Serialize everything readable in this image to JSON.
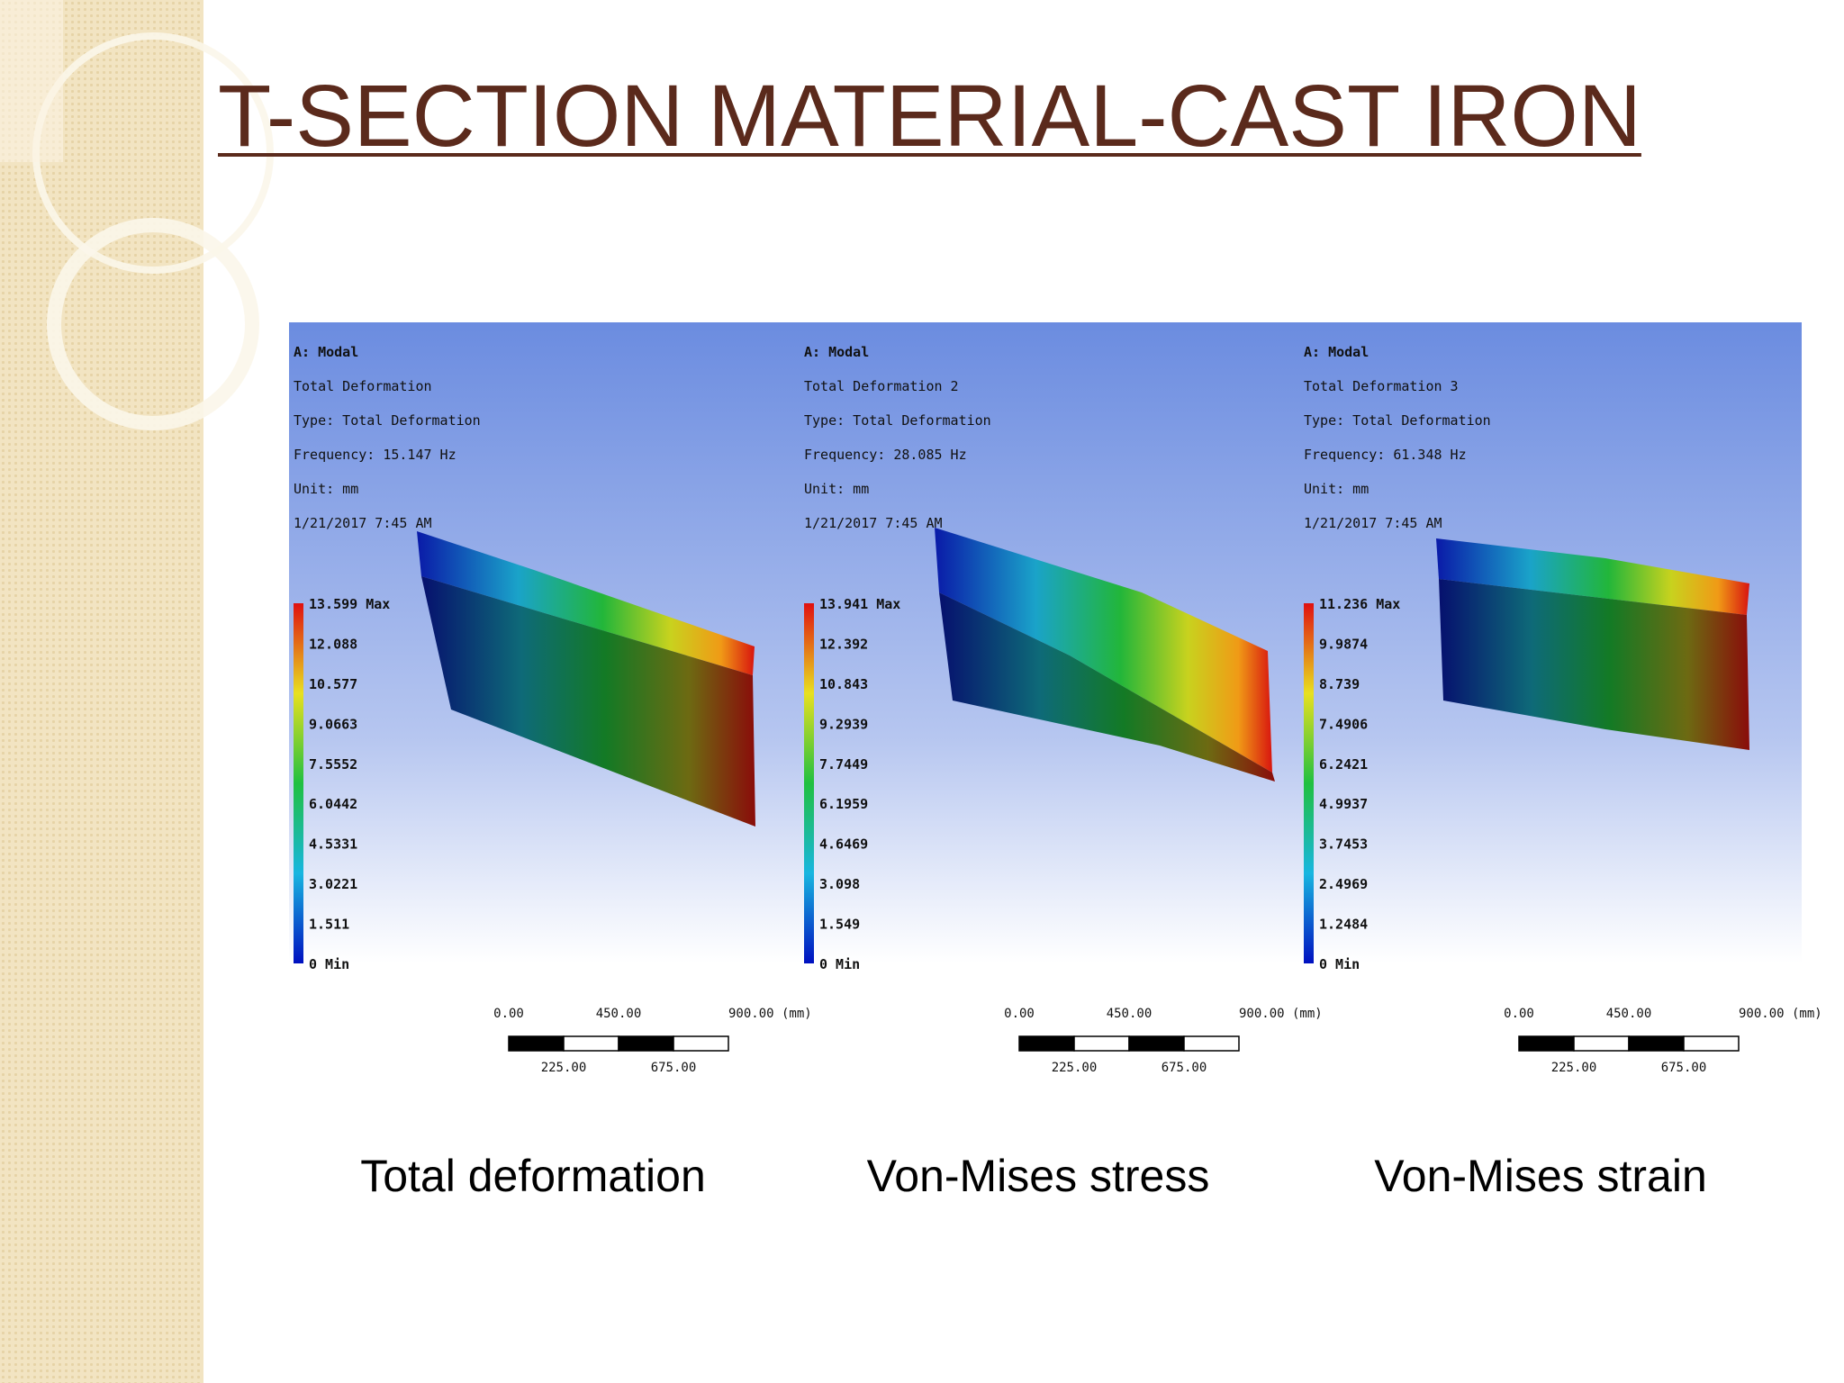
{
  "header": {
    "title": "T-SECTION MATERIAL-CAST IRON"
  },
  "figure": {
    "panels": [
      {
        "info": [
          "A: Modal",
          "Total Deformation",
          "Type: Total Deformation",
          "Frequency: 15.147 Hz",
          "Unit: mm",
          "1/21/2017 7:45 AM"
        ],
        "legend": [
          "13.599 Max",
          "12.088",
          "10.577",
          "9.0663",
          "7.5552",
          "6.0442",
          "4.5331",
          "3.0221",
          "1.511",
          "0 Min"
        ],
        "scale_top": [
          "0.00",
          "450.00",
          "900.00 (mm)"
        ],
        "scale_bottom": [
          "225.00",
          "675.00"
        ],
        "caption": "Total deformation"
      },
      {
        "info": [
          "A: Modal",
          "Total Deformation 2",
          "Type: Total Deformation",
          "Frequency: 28.085 Hz",
          "Unit: mm",
          "1/21/2017 7:45 AM"
        ],
        "legend": [
          "13.941 Max",
          "12.392",
          "10.843",
          "9.2939",
          "7.7449",
          "6.1959",
          "4.6469",
          "3.098",
          "1.549",
          "0 Min"
        ],
        "scale_top": [
          "0.00",
          "450.00",
          "900.00 (mm)"
        ],
        "scale_bottom": [
          "225.00",
          "675.00"
        ],
        "caption": "Von-Mises stress"
      },
      {
        "info": [
          "A: Modal",
          "Total Deformation 3",
          "Type: Total Deformation",
          "Frequency: 61.348 Hz",
          "Unit: mm",
          "1/21/2017 7:45 AM"
        ],
        "legend": [
          "11.236 Max",
          "9.9874",
          "8.739",
          "7.4906",
          "6.2421",
          "4.9937",
          "3.7453",
          "2.4969",
          "1.2484",
          "0 Min"
        ],
        "scale_top": [
          "0.00",
          "450.00",
          "900.00 (mm)"
        ],
        "scale_bottom": [
          "225.00",
          "675.00"
        ],
        "caption": "Von-Mises strain"
      }
    ]
  }
}
